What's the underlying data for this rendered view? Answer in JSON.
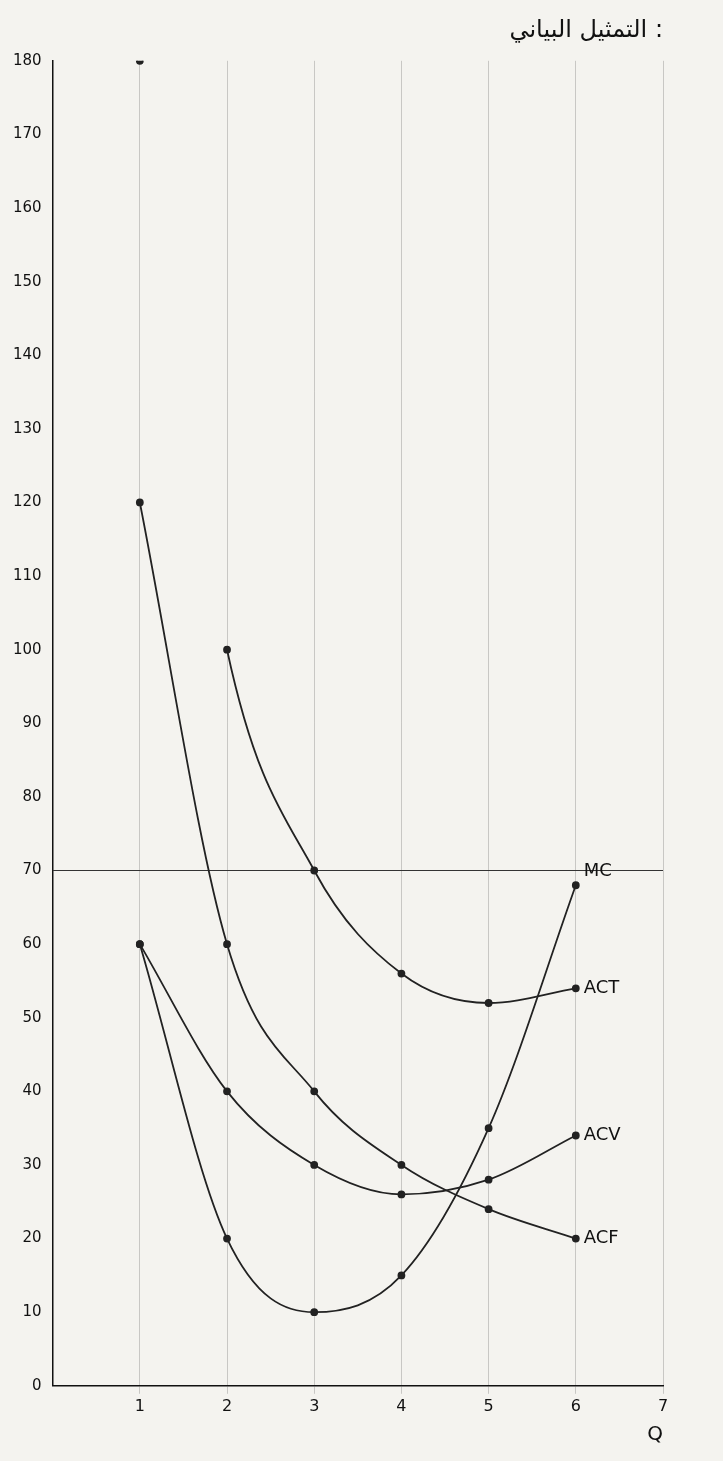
{
  "chart_data": {
    "type": "line",
    "title": "التمثيل البياني :",
    "x_label": "Q",
    "x": [
      1,
      2,
      3,
      4,
      5,
      6
    ],
    "xlim": [
      0,
      7
    ],
    "xticks": [
      1,
      2,
      3,
      4,
      5,
      6,
      7
    ],
    "ylim": [
      0,
      180
    ],
    "yticks": [
      0,
      10,
      20,
      30,
      40,
      50,
      60,
      70,
      80,
      90,
      100,
      110,
      120,
      130,
      140,
      150,
      160,
      170,
      180
    ],
    "grid": true,
    "series": [
      {
        "name": "ACT",
        "color": "#222222",
        "values": [
          180,
          100,
          70,
          56,
          52,
          54
        ],
        "marker": "dot",
        "line_style": "solid"
      },
      {
        "name": "ACF",
        "color": "#222222",
        "values": [
          120,
          60,
          40,
          30,
          24,
          20
        ],
        "marker": "dot",
        "line_style": "solid"
      },
      {
        "name": "ACV",
        "color": "#222222",
        "values": [
          60,
          40,
          30,
          26,
          28,
          34
        ],
        "marker": "dot",
        "line_style": "solid"
      },
      {
        "name": "MC",
        "color": "#222222",
        "values": [
          60,
          20,
          10,
          15,
          35,
          68
        ],
        "marker": "dot",
        "line_style": "solid"
      },
      {
        "color": "#333333",
        "x": [
          0,
          7
        ],
        "values": [
          70,
          70
        ],
        "marker": "none",
        "line_style": "solid"
      }
    ]
  }
}
